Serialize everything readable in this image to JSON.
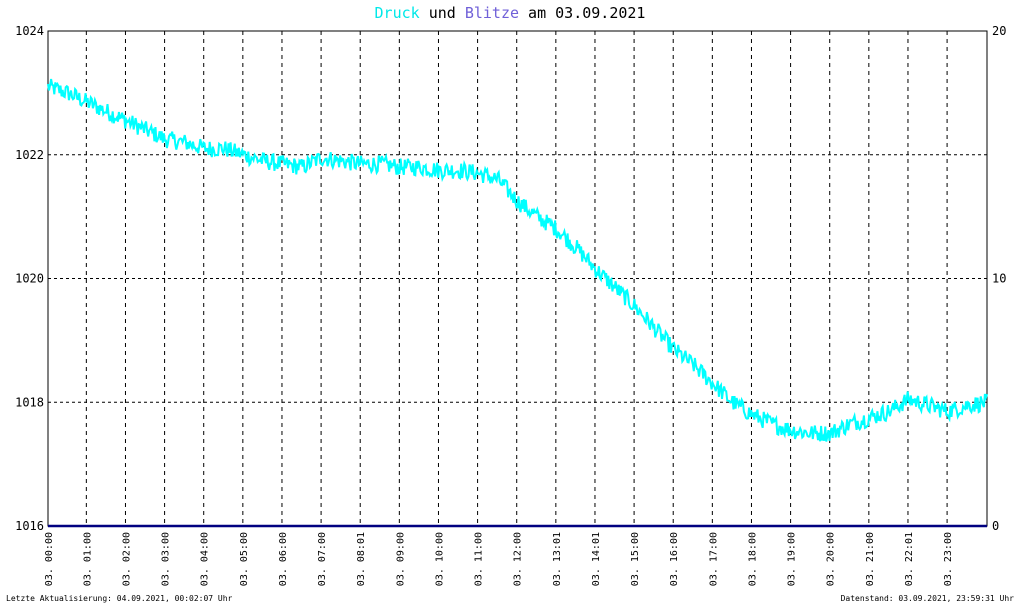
{
  "title": {
    "part1": "Druck",
    "part2": " und ",
    "part3": "Blitze",
    "part4": " am 03.09.2021",
    "colors": {
      "druck": "#00e8e8",
      "blitze": "#7060d8",
      "text": "#000000"
    }
  },
  "footer": {
    "left": "Letzte Aktualisierung: 04.09.2021, 00:02:07 Uhr",
    "right": "Datenstand: 03.09.2021, 23:59:31 Uhr"
  },
  "chart_data": {
    "type": "line",
    "title": "Druck und Blitze am 03.09.2021",
    "y_left": {
      "ylim": [
        1016,
        1024
      ],
      "ticks": [
        1016,
        1018,
        1020,
        1022,
        1024
      ]
    },
    "y_right": {
      "ylim": [
        0,
        20
      ],
      "ticks": [
        0,
        10,
        20
      ]
    },
    "x_range_hours": [
      0,
      24
    ],
    "x_ticks": [
      {
        "label": "03. 00:00",
        "hour": 0.0
      },
      {
        "label": "03. 01:00",
        "hour": 0.98
      },
      {
        "label": "03. 02:00",
        "hour": 1.98
      },
      {
        "label": "03. 03:00",
        "hour": 2.98
      },
      {
        "label": "03. 04:00",
        "hour": 3.98
      },
      {
        "label": "03. 05:00",
        "hour": 4.98
      },
      {
        "label": "03. 06:00",
        "hour": 5.98
      },
      {
        "label": "03. 07:00",
        "hour": 6.98
      },
      {
        "label": "03. 08:01",
        "hour": 7.98
      },
      {
        "label": "03. 09:00",
        "hour": 8.98
      },
      {
        "label": "03. 10:00",
        "hour": 9.98
      },
      {
        "label": "03. 11:00",
        "hour": 10.98
      },
      {
        "label": "03. 12:00",
        "hour": 11.98
      },
      {
        "label": "03. 13:01",
        "hour": 12.98
      },
      {
        "label": "03. 14:01",
        "hour": 13.98
      },
      {
        "label": "03. 15:00",
        "hour": 14.98
      },
      {
        "label": "03. 16:00",
        "hour": 15.98
      },
      {
        "label": "03. 17:00",
        "hour": 16.98
      },
      {
        "label": "03. 18:00",
        "hour": 17.98
      },
      {
        "label": "03. 19:00",
        "hour": 18.98
      },
      {
        "label": "03. 20:00",
        "hour": 19.98
      },
      {
        "label": "03. 21:00",
        "hour": 20.98
      },
      {
        "label": "03. 22:01",
        "hour": 21.98
      },
      {
        "label": "03. 23:00",
        "hour": 22.98
      }
    ],
    "grid": true,
    "series": [
      {
        "name": "Druck",
        "axis": "left",
        "color": "#00ffff",
        "x": [
          0.0,
          0.5,
          1.0,
          1.5,
          2.0,
          2.5,
          3.0,
          3.5,
          4.0,
          4.5,
          5.0,
          5.5,
          6.0,
          6.5,
          7.0,
          7.5,
          8.0,
          8.5,
          9.0,
          9.5,
          10.0,
          10.5,
          11.0,
          11.5,
          12.0,
          12.5,
          13.0,
          13.5,
          14.0,
          14.5,
          15.0,
          15.5,
          16.0,
          16.5,
          17.0,
          17.5,
          18.0,
          18.5,
          19.0,
          19.5,
          20.0,
          20.5,
          21.0,
          21.5,
          22.0,
          22.5,
          23.0,
          23.5,
          24.0
        ],
        "y": [
          1023.1,
          1023.0,
          1022.85,
          1022.7,
          1022.55,
          1022.4,
          1022.25,
          1022.2,
          1022.1,
          1022.1,
          1022.0,
          1021.9,
          1021.85,
          1021.8,
          1021.95,
          1021.9,
          1021.85,
          1021.85,
          1021.8,
          1021.8,
          1021.75,
          1021.75,
          1021.7,
          1021.6,
          1021.25,
          1021.0,
          1020.8,
          1020.5,
          1020.15,
          1019.85,
          1019.55,
          1019.2,
          1018.85,
          1018.6,
          1018.3,
          1018.0,
          1017.8,
          1017.65,
          1017.55,
          1017.5,
          1017.5,
          1017.65,
          1017.75,
          1017.85,
          1018.05,
          1017.95,
          1017.85,
          1017.95,
          1018.0
        ]
      },
      {
        "name": "Blitze",
        "axis": "right",
        "color": "#000080",
        "x": [
          0,
          24
        ],
        "y": [
          0,
          0
        ]
      }
    ]
  }
}
